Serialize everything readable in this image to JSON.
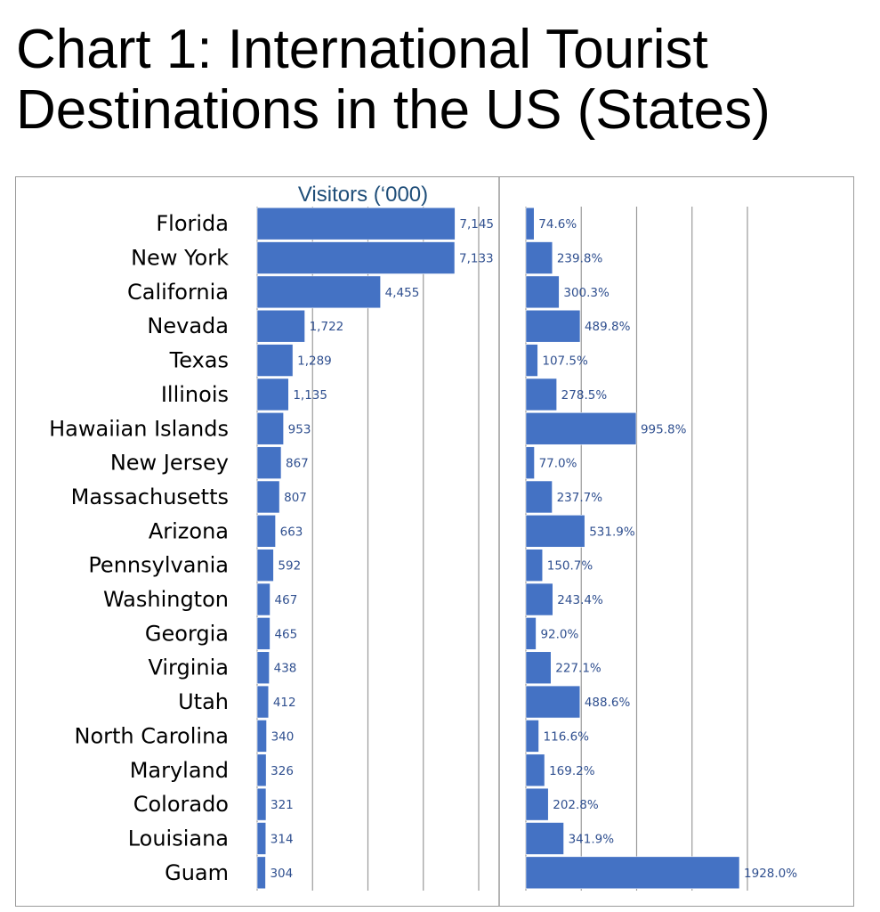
{
  "title": "Chart 1: International Tourist Destinations in the US (States)",
  "chart_data": [
    {
      "type": "bar",
      "orientation": "horizontal",
      "title": "Visitors (‘000)",
      "color": "#4472c4",
      "categories": [
        "Florida",
        "New York",
        "California",
        "Nevada",
        "Texas",
        "Illinois",
        "Hawaiian Islands",
        "New Jersey",
        "Massachusetts",
        "Arizona",
        "Pennsylvania",
        "Washington",
        "Georgia",
        "Virginia",
        "Utah",
        "North Carolina",
        "Maryland",
        "Colorado",
        "Louisiana",
        "Guam"
      ],
      "values": [
        7145,
        7133,
        4455,
        1722,
        1289,
        1135,
        953,
        867,
        807,
        663,
        592,
        467,
        465,
        438,
        412,
        340,
        326,
        321,
        314,
        304
      ],
      "labels": [
        "7,145",
        "7,133",
        "4,455",
        "1,722",
        "1,289",
        "1,135",
        "953",
        "867",
        "807",
        "663",
        "592",
        "467",
        "465",
        "438",
        "412",
        "340",
        "326",
        "321",
        "314",
        "304"
      ],
      "xlim": [
        0,
        8000
      ],
      "grid": true
    },
    {
      "type": "bar",
      "orientation": "horizontal",
      "color": "#4472c4",
      "categories": [
        "Florida",
        "New York",
        "California",
        "Nevada",
        "Texas",
        "Illinois",
        "Hawaiian Islands",
        "New Jersey",
        "Massachusetts",
        "Arizona",
        "Pennsylvania",
        "Washington",
        "Georgia",
        "Virginia",
        "Utah",
        "North Carolina",
        "Maryland",
        "Colorado",
        "Louisiana",
        "Guam"
      ],
      "values": [
        74.6,
        239.8,
        300.3,
        489.8,
        107.5,
        278.5,
        995.8,
        77.0,
        237.7,
        531.9,
        150.7,
        243.4,
        92.0,
        227.1,
        488.6,
        116.6,
        169.2,
        202.8,
        341.9,
        1928.0
      ],
      "labels": [
        "74.6%",
        "239.8%",
        "300.3%",
        "489.8%",
        "107.5%",
        "278.5%",
        "995.8%",
        "77.0%",
        "237.7%",
        "531.9%",
        "150.7%",
        "243.4%",
        "92.0%",
        "227.1%",
        "488.6%",
        "116.6%",
        "169.2%",
        "202.8%",
        "341.9%",
        "1928.0%"
      ],
      "xlim": [
        0,
        2000
      ],
      "grid": true
    }
  ]
}
